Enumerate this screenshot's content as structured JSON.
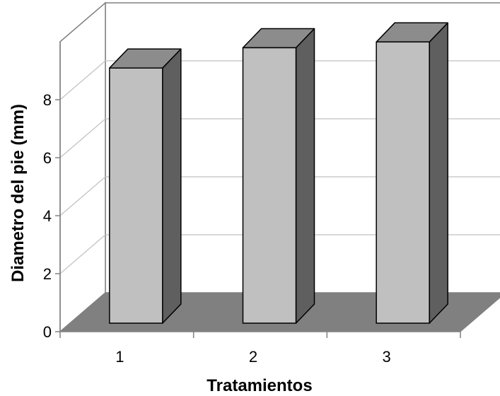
{
  "chart_data": {
    "type": "bar",
    "style": "3d-column",
    "title": "",
    "xlabel": "Tratamientos",
    "ylabel": "Diametro del pie (mm)",
    "categories": [
      "1",
      "2",
      "3"
    ],
    "values": [
      8.8,
      9.5,
      9.7
    ],
    "ylim": [
      0,
      10
    ],
    "yticks": [
      0,
      2,
      4,
      6,
      8
    ],
    "grid": true,
    "legend": "none",
    "colors": {
      "bar_front": "#c0c0c0",
      "bar_side": "#5f5f5f",
      "bar_top": "#8c8c8c",
      "floor": "#808080",
      "wall": "#ffffff",
      "gridline": "#c0c0c0",
      "axis": "#808080"
    }
  }
}
